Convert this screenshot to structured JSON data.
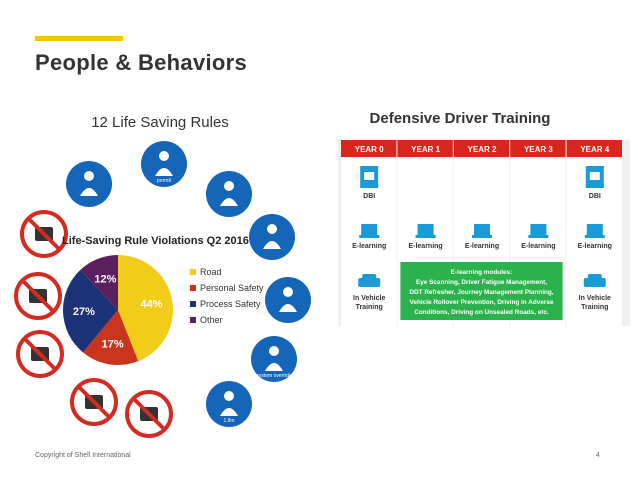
{
  "slide": {
    "title": "People & Behaviors",
    "left_heading": "12 Life Saving Rules",
    "right_heading": "Defensive Driver Training",
    "footer": "Copyright of Shell International",
    "page_number": "4",
    "accent_color": "#f5c400"
  },
  "rules_icons": [
    {
      "name": "seatbelt-icon",
      "text": ""
    },
    {
      "name": "permit-icon",
      "text": "permit"
    },
    {
      "name": "gas-test-icon",
      "text": ""
    },
    {
      "name": "isolation-icon",
      "text": ""
    },
    {
      "name": "confined-space-icon",
      "text": ""
    },
    {
      "name": "override-icon",
      "text": "system override"
    },
    {
      "name": "fall-protection-icon",
      "text": "1.8m"
    },
    {
      "name": "suspended-load-icon",
      "text": ""
    },
    {
      "name": "no-smoking-icon",
      "text": ""
    },
    {
      "name": "no-alcohol-icon",
      "text": ""
    },
    {
      "name": "no-phone-icon",
      "text": ""
    },
    {
      "name": "speed-icon",
      "text": ""
    }
  ],
  "chart_data": {
    "type": "pie",
    "title": "Life-Saving Rule Violations Q2 2016",
    "slices": [
      {
        "label": "Road",
        "value": 44,
        "display": "44%",
        "color": "#f2cc1b"
      },
      {
        "label": "Personal Safety",
        "value": 17,
        "display": "17%",
        "color": "#c8341e"
      },
      {
        "label": "Process Safety",
        "value": 27,
        "display": "27%",
        "color": "#1b3276"
      },
      {
        "label": "Other",
        "value": 12,
        "display": "12%",
        "color": "#5a1f5c"
      }
    ],
    "legend_position": "right"
  },
  "ddt": {
    "years": [
      "YEAR 0",
      "YEAR 1",
      "YEAR 2",
      "YEAR 3",
      "YEAR 4"
    ],
    "dbi_label": "DBI",
    "elearning_label": "E-learning",
    "in_vehicle_label": "In Vehicle Training",
    "modules_box": "E-learning modules: Eye Scanning, Driver Fatigue Management, DDT Refresher, Journey Management Planning, Vehicle Rollover Prevention, Driving in Adverse Conditions, Driving on Unsealed Roads, etc.",
    "header_color": "#d8261c",
    "modules_color": "#2bb24c"
  }
}
